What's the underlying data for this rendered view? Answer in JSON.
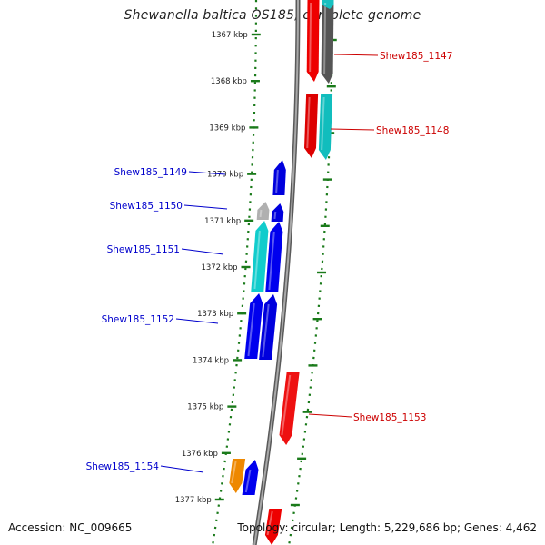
{
  "title": "Shewanella baltica OS185, complete genome",
  "footer": {
    "accession": "Accession: NC_009665",
    "info": "Topology: circular; Length: 5,229,686 bp; Genes: 4,462"
  },
  "colors": {
    "backbone": "#8a8a8a",
    "track_dots": "#1a7a1a",
    "tick_label": "#222222",
    "label_left": "#0000cc",
    "label_right": "#cc0000"
  },
  "scale_ticks": [
    "1367 kbp",
    "1368 kbp",
    "1369 kbp",
    "1370 kbp",
    "1371 kbp",
    "1372 kbp",
    "1373 kbp",
    "1374 kbp",
    "1375 kbp",
    "1376 kbp",
    "1377 kbp"
  ],
  "labels": [
    {
      "text": "Shew185_1147",
      "side": "right"
    },
    {
      "text": "Shew185_1148",
      "side": "right"
    },
    {
      "text": "Shew185_1149",
      "side": "left"
    },
    {
      "text": "Shew185_1150",
      "side": "left"
    },
    {
      "text": "Shew185_1151",
      "side": "left"
    },
    {
      "text": "Shew185_1152",
      "side": "left"
    },
    {
      "text": "Shew185_1153",
      "side": "right"
    },
    {
      "text": "Shew185_1154",
      "side": "left"
    }
  ]
}
